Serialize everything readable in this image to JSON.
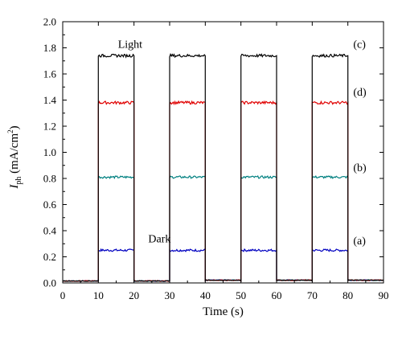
{
  "chart_data": {
    "type": "line",
    "xlabel": "Time (s)",
    "ylabel": {
      "main": "I",
      "sub": "ph",
      "unit_prefix": " (mA/cm",
      "unit_sup": "2",
      "unit_suffix": ")"
    },
    "xlim": [
      0,
      90
    ],
    "ylim": [
      0,
      2.0
    ],
    "xticks": [
      0,
      10,
      20,
      30,
      40,
      50,
      60,
      70,
      80,
      90
    ],
    "yticks": [
      0.0,
      0.2,
      0.4,
      0.6,
      0.8,
      1.0,
      1.2,
      1.4,
      1.6,
      1.8,
      2.0
    ],
    "x_tick_labels": [
      "0",
      "10",
      "20",
      "30",
      "40",
      "50",
      "60",
      "70",
      "80",
      "90"
    ],
    "y_tick_labels": [
      "0.0",
      "0.2",
      "0.4",
      "0.6",
      "0.8",
      "1.0",
      "1.2",
      "1.4",
      "1.6",
      "1.8",
      "2.0"
    ],
    "grid": false,
    "light_on_intervals": [
      [
        10,
        20
      ],
      [
        30,
        40
      ],
      [
        50,
        60
      ],
      [
        70,
        80
      ]
    ],
    "series": [
      {
        "name": "(c)",
        "color": "#000000",
        "on": 1.74,
        "off": 0.015
      },
      {
        "name": "(d)",
        "color": "#e00000",
        "on": 1.38,
        "off": 0.015
      },
      {
        "name": "(b)",
        "color": "#008080",
        "on": 0.81,
        "off": 0.015
      },
      {
        "name": "(a)",
        "color": "#0000c0",
        "on": 0.25,
        "off": 0.015
      }
    ],
    "series_labels": [
      {
        "text": "(c)",
        "x": 81.5,
        "y": 1.8
      },
      {
        "text": "(d)",
        "x": 81.5,
        "y": 1.435
      },
      {
        "text": "(b)",
        "x": 81.5,
        "y": 0.855
      },
      {
        "text": "(a)",
        "x": 81.5,
        "y": 0.295
      }
    ],
    "annotations": [
      {
        "text": "Light",
        "x": 15.5,
        "y": 1.8
      },
      {
        "text": "Dark",
        "x": 24,
        "y": 0.31
      }
    ]
  }
}
